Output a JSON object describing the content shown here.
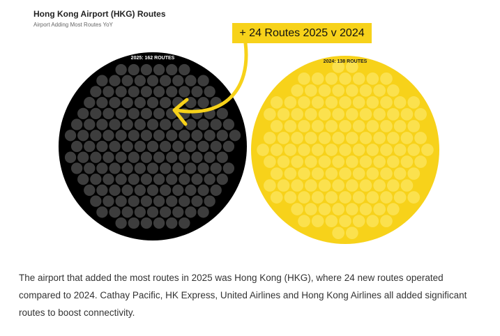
{
  "chart_data": {
    "type": "unit-circle",
    "title": "Hong Kong Airport (HKG) Routes",
    "subtitle": "Airport Adding Most Routes YoY",
    "values": [
      162,
      138
    ],
    "value_labels": [
      "2025: 162 ROUTES",
      "2024: 138 ROUTES"
    ],
    "colors": [
      "#000000",
      "#f7d21a"
    ],
    "dot_colors": [
      "#3d3d3d",
      "#fbe14e"
    ],
    "label_colors": [
      "#ffffff",
      "#222222"
    ],
    "annotation": "+ 24 Routes 2025 v 2024"
  },
  "body": {
    "text": "The airport that added the most routes in 2025 was Hong Kong (HKG), where 24 new routes operated compared to 2024. Cathay Pacific, HK Express, United Airlines and Hong Kong Airlines all added significant routes to boost connectivity."
  }
}
